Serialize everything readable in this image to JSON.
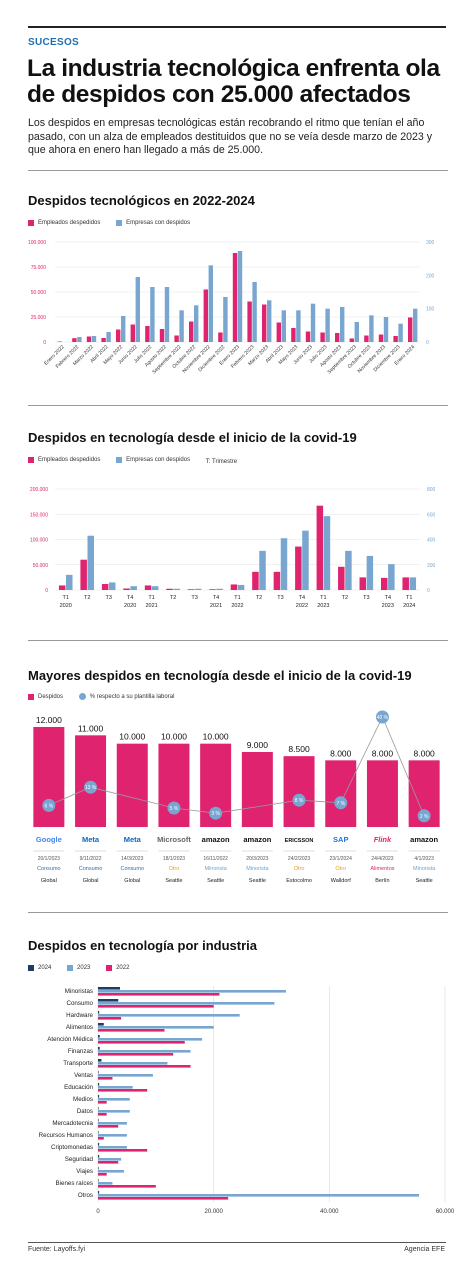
{
  "header": {
    "section": "SUCESOS",
    "headline": "La industria tecnológica enfrenta ola de despidos con 25.000 afectados",
    "lede": "Los despidos en empresas tecnológicas están recobrando el ritmo que tenían el año pasado, con un alza de empleados destituidos que no se veía desde marzo de 2023 y que ahora en enero han llegado a más de 25.000."
  },
  "colors": {
    "pink": "#e0236e",
    "blue": "#78a6d0",
    "navy": "#1f3d63",
    "gray_dot": "#8a8a8a"
  },
  "footer": {
    "source": "Fuente: Layoffs.fyi",
    "agency": "Agencia EFE"
  },
  "chart_data": [
    {
      "type": "bar",
      "title": "Despidos tecnológicos en 2022-2024",
      "legend": [
        "Empleados despedidos",
        "Empresas con despidos"
      ],
      "categories": [
        "Enero 2022",
        "Febrero 2022",
        "Marzo 2022",
        "Abril 2022",
        "Mayo 2022",
        "Junio 2022",
        "Julio 2022",
        "Agosto 2022",
        "Septiembre 2022",
        "Octubre 2022",
        "Noviembre 2022",
        "Diciembre 2022",
        "Enero 2023",
        "Febrero 2023",
        "Marzo 2023",
        "Abril 2023",
        "Mayo 2023",
        "Junio 2023",
        "Julio 2023",
        "Agosto 2023",
        "Septiembre 2023",
        "Octubre 2023",
        "Noviembre 2023",
        "Diciembre 2023",
        "Enero 2024"
      ],
      "series": [
        {
          "name": "Empleados despedidos",
          "axis": "left",
          "values": [
            500,
            3800,
            5500,
            4000,
            12500,
            17500,
            16000,
            13000,
            6500,
            20500,
            52500,
            9500,
            89000,
            40500,
            37500,
            19500,
            14000,
            10500,
            9500,
            9000,
            3500,
            6500,
            7500,
            6000,
            24500
          ]
        },
        {
          "name": "Empresas con despidos",
          "axis": "right",
          "values": [
            0,
            15,
            18,
            30,
            78,
            195,
            165,
            165,
            95,
            110,
            230,
            135,
            273,
            180,
            125,
            95,
            95,
            115,
            100,
            105,
            60,
            80,
            75,
            55,
            100
          ]
        }
      ],
      "y_left": {
        "ticks": [
          "0",
          "25.000",
          "50.000",
          "75.000",
          "100.000"
        ],
        "max": 100000
      },
      "y_right": {
        "ticks": [
          "0",
          "100",
          "200",
          "300"
        ],
        "max": 300
      }
    },
    {
      "type": "bar",
      "title": "Despidos en tecnología desde el inicio de la covid-19",
      "legend": [
        "Empleados despedidos",
        "Empresas con despidos",
        "T: Trimestre"
      ],
      "categories": [
        "T1 2020",
        "T2",
        "T3",
        "T4 2020",
        "T1 2021",
        "T2",
        "T3",
        "T4 2021",
        "T1 2022",
        "T2",
        "T3",
        "T4 2022",
        "T1 2023",
        "T2",
        "T3",
        "T4 2023",
        "T1 2024"
      ],
      "tick_lines": [
        [
          "T1",
          "2020"
        ],
        [
          "T2",
          ""
        ],
        [
          "T3",
          ""
        ],
        [
          "T4",
          "2020"
        ],
        [
          "T1",
          "2021"
        ],
        [
          "T2",
          ""
        ],
        [
          "T3",
          ""
        ],
        [
          "T4",
          "2021"
        ],
        [
          "T1",
          "2022"
        ],
        [
          "T2",
          ""
        ],
        [
          "T3",
          ""
        ],
        [
          "T4",
          "2022"
        ],
        [
          "T1",
          "2023"
        ],
        [
          "T2",
          ""
        ],
        [
          "T3",
          ""
        ],
        [
          "T4",
          "2023"
        ],
        [
          "T1",
          "2024"
        ]
      ],
      "series": [
        {
          "name": "Empleados despedidos",
          "axis": "left",
          "values": [
            9000,
            60000,
            12000,
            3000,
            9000,
            2500,
            1500,
            1500,
            11000,
            36000,
            36000,
            86000,
            167000,
            46000,
            25000,
            24000,
            25000
          ]
        },
        {
          "name": "Empresas con despidos",
          "axis": "right",
          "values": [
            120,
            430,
            60,
            30,
            30,
            10,
            10,
            10,
            40,
            310,
            410,
            470,
            585,
            310,
            270,
            205,
            100
          ]
        }
      ],
      "y_left": {
        "ticks": [
          "0",
          "50.000",
          "100.000",
          "150.000",
          "200.000"
        ],
        "max": 200000
      },
      "y_right": {
        "ticks": [
          "0",
          "200",
          "400",
          "600",
          "800"
        ],
        "max": 800
      }
    },
    {
      "type": "bar",
      "title": "Mayores despidos en tecnología desde el inicio de la covid-19",
      "legend": [
        "Despidos",
        "% respecto a su plantilla laboral"
      ],
      "categories": [
        "Google",
        "Meta",
        "Meta",
        "Microsoft",
        "amazon",
        "amazon",
        "ERICSSON",
        "SAP",
        "Flink",
        "amazon"
      ],
      "values": [
        12000,
        11000,
        10000,
        10000,
        10000,
        9000,
        8500,
        8000,
        8000,
        8000
      ],
      "value_labels": [
        "12.000",
        "11.000",
        "10.000",
        "10.000",
        "10.000",
        "9.000",
        "8.500",
        "8.000",
        "8.000",
        "8.000"
      ],
      "percent_values": [
        6,
        13,
        null,
        5,
        3,
        null,
        8,
        7,
        40,
        2
      ],
      "percent_labels": [
        "6 %",
        "13 %",
        "",
        "5 %",
        "3 %",
        "",
        "8 %",
        "7 %",
        "40 %",
        "2 %"
      ],
      "dates": [
        "20/1/2023",
        "9/11/2022",
        "14/3/2023",
        "18/1/2023",
        "16/11/2022",
        "20/3/2023",
        "24/2/2023",
        "23/1/2024",
        "24/4/2023",
        "4/1/2023"
      ],
      "sectors": [
        "Consumo",
        "Consumo",
        "Consumo",
        "Otro",
        "Minorista",
        "Minorista",
        "Otro",
        "Otro",
        "Alimentos",
        "Minorista"
      ],
      "sector_colors": [
        "#2e6fb0",
        "#2e6fb0",
        "#2e6fb0",
        "#e6a01e",
        "#6aa3d6",
        "#6aa3d6",
        "#e6a01e",
        "#e6a01e",
        "#e0236e",
        "#6aa3d6"
      ],
      "locations": [
        "Global",
        "Global",
        "Global",
        "Seattle",
        "Seattle",
        "Seattle",
        "Estocolmo",
        "Walldorf",
        "Berlín",
        "Seattle"
      ]
    },
    {
      "type": "bar",
      "orientation": "horizontal",
      "title": "Despidos en tecnología por industria",
      "legend": [
        "2024",
        "2023",
        "2022"
      ],
      "categories": [
        "Minoristas",
        "Consumo",
        "Hardware",
        "Alimentos",
        "Atención Médica",
        "Finanzas",
        "Transporte",
        "Ventas",
        "Educación",
        "Medios",
        "Datos",
        "Mercadotecnia",
        "Recursos Humanos",
        "Criptomonedas",
        "Seguridad",
        "Viajes",
        "Bienes raíces",
        "Otros"
      ],
      "series": [
        {
          "name": "2024",
          "values": [
            3800,
            3500,
            200,
            1000,
            300,
            300,
            600,
            100,
            200,
            200,
            100,
            100,
            100,
            200,
            200,
            100,
            100,
            200
          ]
        },
        {
          "name": "2023",
          "values": [
            32500,
            30500,
            24500,
            20000,
            18000,
            16000,
            12000,
            9500,
            6000,
            5500,
            5500,
            5000,
            5000,
            5000,
            4000,
            4500,
            2500,
            55500
          ]
        },
        {
          "name": "2022",
          "values": [
            21000,
            20000,
            4000,
            11500,
            15000,
            13000,
            16000,
            2500,
            8500,
            1500,
            1500,
            3500,
            1000,
            8500,
            3500,
            1500,
            10000,
            22500
          ]
        }
      ],
      "x_ticks": [
        "0",
        "20.000",
        "40.000",
        "60.000"
      ],
      "xlim": [
        0,
        60000
      ]
    }
  ]
}
